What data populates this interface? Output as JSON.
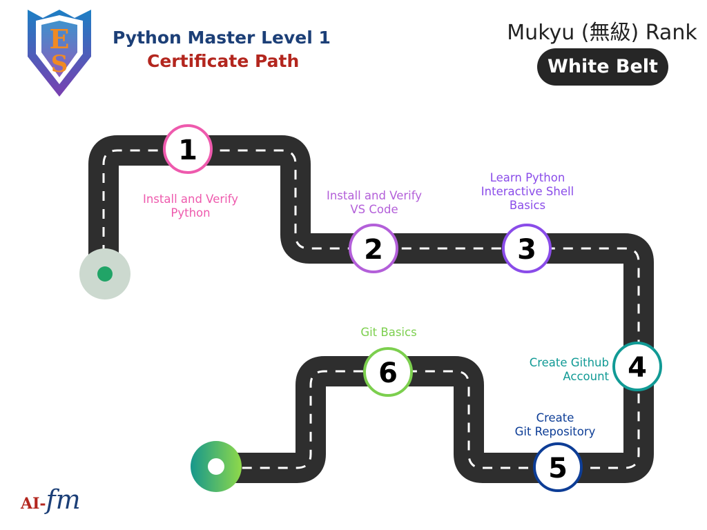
{
  "header": {
    "title_line1": "Python Master Level 1",
    "title_line2": "Certificate Path",
    "rank_label": "Mukyu (無級) Rank",
    "belt_label": "White Belt"
  },
  "steps": [
    {
      "number": "1",
      "label": "Install and Verify\nPython",
      "color": "#ee5aad"
    },
    {
      "number": "2",
      "label": "Install and Verify\nVS Code",
      "color": "#b35fd9"
    },
    {
      "number": "3",
      "label": "Learn Python\nInteractive Shell\nBasics",
      "color": "#8a4ce9"
    },
    {
      "number": "4",
      "label": "Create Github\nAccount",
      "color": "#119a95"
    },
    {
      "number": "5",
      "label": "Create\nGit  Repository",
      "color": "#0d3d96"
    },
    {
      "number": "6",
      "label": "Git Basics",
      "color": "#7ccf4e"
    }
  ],
  "brand": {
    "prefix": "AI-",
    "suffix": "fm"
  },
  "colors": {
    "road": "#2e2e2e",
    "dash": "#ffffff",
    "title_blue": "#1c3f77",
    "title_red": "#b3261e",
    "start_outer": "#ccd9cf",
    "start_inner": "#21a467",
    "end_gradient_start": "#16978c",
    "end_gradient_end": "#8fd94a"
  },
  "icons": {
    "logo": "shield-crest-logo",
    "start": "start-dot-icon",
    "end": "finish-dot-icon"
  }
}
